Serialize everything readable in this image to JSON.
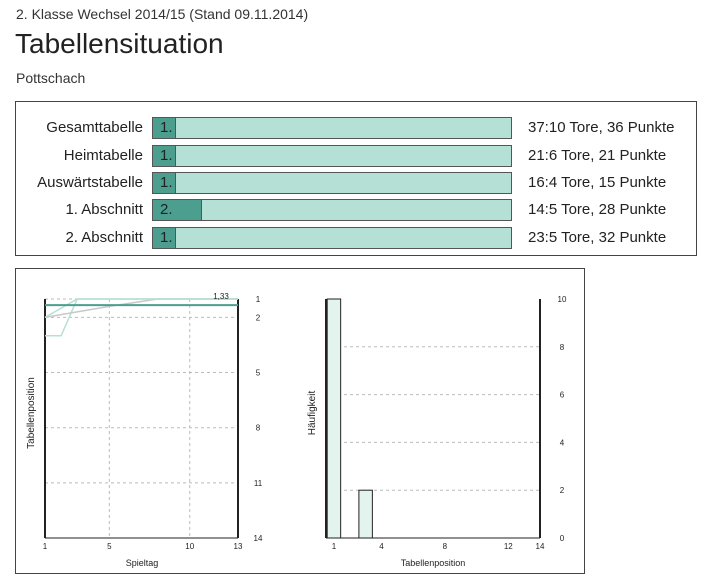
{
  "header": {
    "league_line": "2. Klasse Wechsel 2014/15 (Stand 09.11.2014)",
    "title": "Tabellensituation",
    "team": "Pottschach"
  },
  "standings": [
    {
      "label": "Gesamttabelle",
      "rank": "1.",
      "rank_value": 1,
      "stats": "37:10 Tore, 36 Punkte"
    },
    {
      "label": "Heimtabelle",
      "rank": "1.",
      "rank_value": 1,
      "stats": "21:6 Tore, 21 Punkte"
    },
    {
      "label": "Auswärtstabelle",
      "rank": "1.",
      "rank_value": 1,
      "stats": "16:4 Tore, 15 Punkte"
    },
    {
      "label": "1. Abschnitt",
      "rank": "2.",
      "rank_value": 2,
      "stats": "14:5 Tore, 28 Punkte"
    },
    {
      "label": "2. Abschnitt",
      "rank": "1.",
      "rank_value": 1,
      "stats": "23:5 Tore, 32 Punkte"
    }
  ],
  "colors": {
    "bar_fill": "#4c9e8f",
    "bar_background": "#b5e0d5",
    "line_main": "#4c9e8f",
    "line_light": "#b5e0d5",
    "line_gray": "#c8c8c8",
    "hist_fill": "#e3f3ee"
  },
  "chart_data": [
    {
      "type": "line",
      "xlabel": "Spieltag",
      "ylabel": "Tabellenposition",
      "xlim": [
        1,
        13
      ],
      "ylim": [
        1,
        14
      ],
      "y_inverted": true,
      "x_ticks": [
        "1",
        "5",
        "10",
        "13"
      ],
      "x_tick_values": [
        1,
        5,
        10,
        13
      ],
      "y_ticks": [
        "1",
        "2",
        "5",
        "8",
        "11",
        "14"
      ],
      "y_tick_values": [
        1,
        2,
        5,
        8,
        11,
        14
      ],
      "avg_label": "1,33",
      "avg_value": 1.33,
      "series": [
        {
          "name": "Gesamttabelle",
          "color": "#4c9e8f",
          "x": [
            1,
            2,
            3,
            4,
            5,
            6,
            7,
            8,
            9,
            10,
            11,
            12,
            13
          ],
          "y": [
            1.33,
            1.33,
            1.33,
            1.33,
            1.33,
            1.33,
            1.33,
            1.33,
            1.33,
            1.33,
            1.33,
            1.33,
            1.33
          ]
        },
        {
          "name": "Heimtabelle",
          "color": "#b5e0d5",
          "x": [
            1,
            2,
            3,
            4,
            5,
            6,
            7,
            8,
            9,
            10,
            11,
            12,
            13
          ],
          "y": [
            3,
            3,
            1,
            1,
            1,
            1,
            1,
            1,
            1,
            1,
            1,
            1,
            1
          ]
        },
        {
          "name": "Auswärtstabelle",
          "color": "#c8c8c8",
          "x": [
            1,
            3,
            5,
            8,
            9,
            10,
            11,
            12,
            13
          ],
          "y": [
            2,
            1.7,
            1.4,
            1,
            1,
            1,
            1,
            1,
            1
          ]
        },
        {
          "name": "Abschnitt",
          "color": "#b5e0d5",
          "x": [
            1,
            3,
            4,
            5,
            6,
            7,
            8,
            9,
            10,
            11,
            12,
            13
          ],
          "y": [
            2,
            1,
            1,
            1,
            1,
            1,
            1,
            1,
            1,
            1,
            1,
            1
          ]
        }
      ]
    },
    {
      "type": "bar",
      "xlabel": "Tabellenposition",
      "ylabel": "Häufigkeit",
      "xlim": [
        0.5,
        14
      ],
      "ylim": [
        0,
        10
      ],
      "x_ticks": [
        "1",
        "4",
        "8",
        "12",
        "14"
      ],
      "x_tick_values": [
        1,
        4,
        8,
        12,
        14
      ],
      "y_ticks": [
        "0",
        "2",
        "4",
        "6",
        "8",
        "10"
      ],
      "y_tick_values": [
        0,
        2,
        4,
        6,
        8,
        10
      ],
      "categories": [
        1,
        3
      ],
      "values": [
        10,
        2
      ]
    }
  ]
}
